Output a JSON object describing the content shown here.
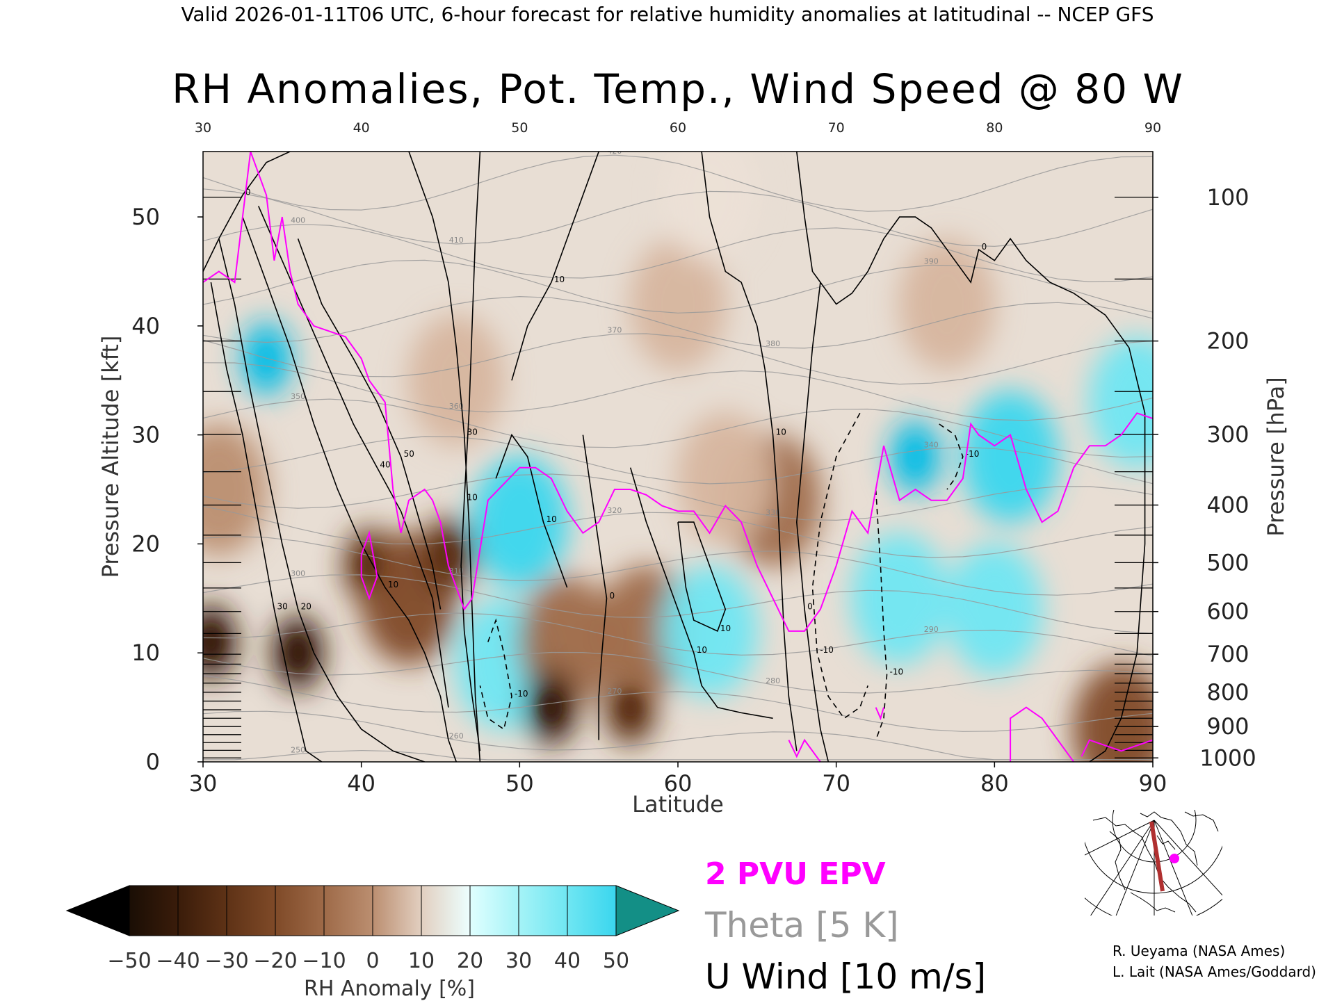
{
  "header": {
    "supertitle": "Valid 2026-01-11T06 UTC, 6-hour forecast for relative humidity anomalies at latitudinal -- NCEP GFS",
    "title": "RH Anomalies, Pot. Temp., Wind Speed @ 80 W"
  },
  "legend": {
    "epv": "2 PVU EPV",
    "theta": "Theta [5 K]",
    "uwind": "U Wind [10 m/s]"
  },
  "credits": [
    "R. Ueyama (NASA Ames)",
    "L. Lait (NASA Ames/Goddard)"
  ],
  "colors": {
    "epv": "#ff00ff",
    "theta": "#999999",
    "wind": "#000000",
    "section_line": "#b03030",
    "rh_scale": [
      "#000000",
      "#3a1c0a",
      "#5e3216",
      "#7f4a28",
      "#9e6a48",
      "#bb8e70",
      "#d6b59e",
      "#ece0d6",
      "#e0ffff",
      "#a5f3f7",
      "#6fe6f2",
      "#3ad6ee",
      "#18bfe4",
      "#0898c0",
      "#138f86"
    ]
  },
  "chart_data": {
    "type": "heatmap",
    "title": "RH Anomalies, Pot. Temp., Wind Speed @ 80 W",
    "xlabel": "Latitude",
    "ylabel": "Pressure Altitude [kft]",
    "y2label": "Pressure [hPa]",
    "xlim": [
      30,
      90
    ],
    "ylim": [
      0,
      56
    ],
    "x_ticks": [
      30,
      40,
      50,
      60,
      70,
      80,
      90
    ],
    "y_ticks": [
      0,
      10,
      20,
      30,
      40,
      50
    ],
    "pressure_ticks": [
      100,
      200,
      300,
      400,
      500,
      600,
      700,
      800,
      900,
      1000
    ],
    "colorbar": {
      "label": "RH Anomaly [%]",
      "ticks": [
        -50,
        -40,
        -30,
        -20,
        -10,
        0,
        10,
        20,
        30,
        40,
        50
      ]
    },
    "rh_anomaly_features": [
      {
        "lat": 34,
        "kft": 37,
        "value": 50
      },
      {
        "lat": 31,
        "kft": 25,
        "value": -20
      },
      {
        "lat": 30.5,
        "kft": 11,
        "value": -60
      },
      {
        "lat": 36,
        "kft": 10,
        "value": -60
      },
      {
        "lat": 40.5,
        "kft": 18,
        "value": -55
      },
      {
        "lat": 43,
        "kft": 15,
        "value": -40
      },
      {
        "lat": 45.5,
        "kft": 19,
        "value": -55
      },
      {
        "lat": 50,
        "kft": 22,
        "value": 40
      },
      {
        "lat": 49,
        "kft": 9,
        "value": 25
      },
      {
        "lat": 53,
        "kft": 11,
        "value": -35
      },
      {
        "lat": 52,
        "kft": 5,
        "value": -60
      },
      {
        "lat": 57,
        "kft": 5,
        "value": -55
      },
      {
        "lat": 58,
        "kft": 12,
        "value": -30
      },
      {
        "lat": 62,
        "kft": 12,
        "value": 25
      },
      {
        "lat": 66,
        "kft": 24,
        "value": -30
      },
      {
        "lat": 63,
        "kft": 26,
        "value": -15
      },
      {
        "lat": 75,
        "kft": 28,
        "value": 50
      },
      {
        "lat": 74,
        "kft": 15,
        "value": 30
      },
      {
        "lat": 81,
        "kft": 28,
        "value": 40
      },
      {
        "lat": 80,
        "kft": 14,
        "value": 25
      },
      {
        "lat": 89,
        "kft": 33,
        "value": 25
      },
      {
        "lat": 88,
        "kft": 3,
        "value": -40
      },
      {
        "lat": 60,
        "kft": 42,
        "value": -15
      },
      {
        "lat": 46,
        "kft": 35,
        "value": -15
      },
      {
        "lat": 77,
        "kft": 42,
        "value": -10
      },
      {
        "lat": 62,
        "kft": 52,
        "value": -5
      }
    ],
    "epv_2pvu_line": [
      [
        30,
        44
      ],
      [
        31,
        45
      ],
      [
        32,
        44
      ],
      [
        33,
        56
      ],
      [
        34,
        52
      ],
      [
        34.5,
        46
      ],
      [
        35,
        50
      ],
      [
        35.5,
        45
      ],
      [
        36,
        42
      ],
      [
        37,
        40
      ],
      [
        38,
        39.5
      ],
      [
        39,
        39
      ],
      [
        40,
        37
      ],
      [
        40.5,
        35
      ],
      [
        41,
        34
      ],
      [
        41.5,
        33
      ],
      [
        42,
        25
      ],
      [
        42.5,
        21
      ],
      [
        43,
        24
      ],
      [
        44,
        25
      ],
      [
        44.5,
        24
      ],
      [
        45,
        22
      ],
      [
        45.5,
        18
      ],
      [
        46,
        16
      ],
      [
        46.5,
        14
      ],
      [
        47,
        15
      ],
      [
        48,
        24
      ],
      [
        49,
        25.5
      ],
      [
        50,
        27
      ],
      [
        51,
        27
      ],
      [
        52,
        26
      ],
      [
        53,
        23
      ],
      [
        54,
        21
      ],
      [
        55,
        22
      ],
      [
        56,
        25
      ],
      [
        57,
        25
      ],
      [
        58,
        24.5
      ],
      [
        59,
        23.5
      ],
      [
        60,
        23
      ],
      [
        61,
        23
      ],
      [
        62,
        21
      ],
      [
        63,
        23.5
      ],
      [
        64,
        22
      ],
      [
        65,
        18
      ],
      [
        66,
        15
      ],
      [
        67,
        12
      ],
      [
        68,
        12
      ],
      [
        69,
        14
      ],
      [
        70,
        18
      ],
      [
        71,
        23
      ],
      [
        72,
        21
      ],
      [
        73,
        29
      ],
      [
        74,
        24
      ],
      [
        75,
        25
      ],
      [
        76,
        24
      ],
      [
        77,
        24
      ],
      [
        78,
        26
      ],
      [
        78.5,
        31
      ],
      [
        79,
        30
      ],
      [
        80,
        29
      ],
      [
        81,
        30
      ],
      [
        82,
        25
      ],
      [
        83,
        22
      ],
      [
        84,
        23
      ],
      [
        85,
        27
      ],
      [
        86,
        29
      ],
      [
        87,
        29
      ],
      [
        88,
        30
      ],
      [
        89,
        32
      ],
      [
        90,
        31.5
      ]
    ],
    "epv_extra_segments": [
      [
        [
          40,
          19
        ],
        [
          40.5,
          21
        ],
        [
          41,
          17
        ],
        [
          40.5,
          15
        ],
        [
          40,
          17
        ],
        [
          40,
          19
        ]
      ],
      [
        [
          72.5,
          5
        ],
        [
          72.8,
          4
        ],
        [
          73,
          5
        ]
      ],
      [
        [
          67,
          2
        ],
        [
          67.5,
          0.5
        ],
        [
          68,
          2
        ],
        [
          69,
          0
        ]
      ],
      [
        [
          81,
          0
        ],
        [
          81,
          4
        ],
        [
          82,
          5
        ],
        [
          83,
          4
        ],
        [
          84,
          2
        ],
        [
          85,
          0
        ]
      ],
      [
        [
          85.5,
          0.5
        ],
        [
          86,
          2
        ],
        [
          88,
          1
        ],
        [
          90,
          2
        ]
      ]
    ],
    "uwind_contours": [
      {
        "label": "30",
        "points": [
          [
            30.5,
            44
          ],
          [
            31.5,
            36
          ],
          [
            32.5,
            30
          ],
          [
            33.5,
            22
          ],
          [
            34.5,
            14
          ],
          [
            35.5,
            7
          ],
          [
            36.5,
            1
          ],
          [
            37.5,
            0
          ]
        ]
      },
      {
        "label": "20",
        "points": [
          [
            31,
            48
          ],
          [
            32,
            42
          ],
          [
            33,
            34
          ],
          [
            34,
            27
          ],
          [
            35,
            20
          ],
          [
            36,
            14
          ],
          [
            37,
            10
          ],
          [
            38.5,
            6
          ],
          [
            40,
            3
          ],
          [
            42,
            1
          ],
          [
            44,
            0
          ]
        ]
      },
      {
        "label": "10",
        "points": [
          [
            32.5,
            50
          ],
          [
            34,
            44
          ],
          [
            35.5,
            38
          ],
          [
            37,
            31
          ],
          [
            38.5,
            25
          ],
          [
            40,
            20
          ],
          [
            41.5,
            16
          ],
          [
            43,
            13
          ],
          [
            44,
            10
          ],
          [
            45,
            6
          ],
          [
            45.5,
            2
          ],
          [
            46,
            0
          ]
        ]
      },
      {
        "label": "40",
        "points": [
          [
            33.5,
            51
          ],
          [
            35,
            46
          ],
          [
            36.5,
            41
          ],
          [
            38,
            36
          ],
          [
            39.5,
            31
          ],
          [
            41,
            27
          ],
          [
            42.5,
            23
          ],
          [
            43.5,
            19
          ],
          [
            44.5,
            15
          ],
          [
            45,
            10
          ],
          [
            45.5,
            5
          ]
        ]
      },
      {
        "label": "50",
        "points": [
          [
            36,
            48
          ],
          [
            37.5,
            42
          ],
          [
            39.5,
            37
          ],
          [
            41,
            33
          ],
          [
            42.5,
            28
          ],
          [
            43.5,
            23
          ],
          [
            44.5,
            18
          ],
          [
            45,
            14
          ]
        ]
      },
      {
        "label": "0",
        "points": [
          [
            30,
            45
          ],
          [
            31,
            48
          ],
          [
            32.5,
            52
          ],
          [
            34,
            55
          ],
          [
            35.5,
            56
          ]
        ]
      },
      {
        "label": "30",
        "points": [
          [
            43,
            56
          ],
          [
            44.5,
            50
          ],
          [
            45.5,
            44
          ],
          [
            46,
            38
          ],
          [
            46.5,
            30
          ],
          [
            46.8,
            22
          ],
          [
            47,
            14
          ],
          [
            47.2,
            6
          ],
          [
            47.5,
            0
          ]
        ]
      },
      {
        "label": "10",
        "points": [
          [
            47.5,
            56
          ],
          [
            47.2,
            48
          ],
          [
            47,
            40
          ],
          [
            46.8,
            32
          ],
          [
            46.5,
            24
          ],
          [
            46.3,
            18
          ],
          [
            46.5,
            12
          ],
          [
            47,
            6
          ],
          [
            47.5,
            1
          ]
        ]
      },
      {
        "label": "10",
        "points": [
          [
            48.5,
            26
          ],
          [
            49.5,
            30
          ],
          [
            50.5,
            28
          ],
          [
            51.5,
            22
          ],
          [
            52.5,
            18
          ],
          [
            53,
            16
          ]
        ]
      },
      {
        "label": "10",
        "points": [
          [
            55,
            56
          ],
          [
            53.5,
            50
          ],
          [
            52,
            44
          ],
          [
            50.5,
            40
          ],
          [
            49.5,
            35
          ]
        ]
      },
      {
        "label": "0",
        "points": [
          [
            54,
            30
          ],
          [
            54.5,
            25
          ],
          [
            55,
            20
          ],
          [
            55.5,
            15
          ],
          [
            55.2,
            10
          ],
          [
            55,
            6
          ],
          [
            55,
            2
          ]
        ]
      },
      {
        "label": "10",
        "points": [
          [
            57,
            27
          ],
          [
            58,
            22
          ],
          [
            59,
            18
          ],
          [
            60,
            14
          ],
          [
            61,
            10
          ],
          [
            61.5,
            7
          ],
          [
            62.5,
            5
          ],
          [
            64,
            4.5
          ],
          [
            66,
            4
          ]
        ]
      },
      {
        "label": "10",
        "points": [
          [
            60,
            22
          ],
          [
            61,
            22
          ],
          [
            62,
            18
          ],
          [
            63,
            14
          ],
          [
            62.5,
            12
          ],
          [
            61,
            13
          ],
          [
            60.5,
            16
          ],
          [
            60,
            22
          ]
        ]
      },
      {
        "label": "10",
        "points": [
          [
            61.5,
            56
          ],
          [
            62,
            50
          ],
          [
            63,
            45
          ],
          [
            64,
            44
          ],
          [
            65,
            40
          ],
          [
            65.5,
            36
          ],
          [
            66,
            30
          ],
          [
            66.3,
            24
          ],
          [
            66.5,
            18
          ],
          [
            66.7,
            12
          ],
          [
            67,
            6
          ],
          [
            67.5,
            1
          ]
        ]
      },
      {
        "label": "0",
        "points": [
          [
            67.5,
            56
          ],
          [
            68,
            50
          ],
          [
            68.5,
            45
          ],
          [
            69,
            44
          ],
          [
            70,
            42
          ],
          [
            71,
            43
          ],
          [
            72,
            45
          ],
          [
            73,
            48
          ],
          [
            74,
            50
          ],
          [
            75,
            50
          ],
          [
            76,
            49
          ],
          [
            77.5,
            46
          ],
          [
            78.5,
            44
          ],
          [
            79,
            47
          ],
          [
            80,
            46
          ],
          [
            81,
            48
          ],
          [
            82,
            46
          ],
          [
            83.5,
            44
          ],
          [
            85,
            43
          ],
          [
            87,
            41
          ],
          [
            88.5,
            38
          ],
          [
            89.5,
            32
          ],
          [
            89.5,
            20
          ],
          [
            89,
            10
          ],
          [
            88,
            4
          ],
          [
            87,
            1
          ],
          [
            86,
            0
          ]
        ]
      },
      {
        "label": "0",
        "points": [
          [
            69,
            44
          ],
          [
            68.5,
            38
          ],
          [
            68,
            30
          ],
          [
            67.5,
            22
          ],
          [
            68,
            14
          ],
          [
            68.5,
            8
          ],
          [
            69,
            3
          ],
          [
            69.5,
            0
          ]
        ]
      }
    ],
    "uwind_dashed_contours": [
      {
        "label": "-10",
        "points": [
          [
            71.5,
            32
          ],
          [
            70,
            28
          ],
          [
            69,
            22
          ],
          [
            68.5,
            16
          ],
          [
            68.8,
            10
          ],
          [
            69.5,
            6
          ],
          [
            70.5,
            4
          ],
          [
            71.5,
            5
          ],
          [
            72,
            7
          ]
        ]
      },
      {
        "label": "-10",
        "points": [
          [
            72.5,
            25
          ],
          [
            72.8,
            18
          ],
          [
            73,
            12
          ],
          [
            73.2,
            8
          ],
          [
            73,
            4
          ],
          [
            72.5,
            2
          ]
        ]
      },
      {
        "label": "-10",
        "points": [
          [
            76.5,
            31
          ],
          [
            77.5,
            30
          ],
          [
            78,
            28
          ],
          [
            77.5,
            26
          ],
          [
            77,
            25
          ]
        ]
      },
      {
        "label": "-10",
        "points": [
          [
            48,
            11
          ],
          [
            48.5,
            13
          ],
          [
            49,
            10
          ],
          [
            49.5,
            6
          ],
          [
            49,
            3
          ],
          [
            48,
            4
          ],
          [
            47.5,
            7
          ]
        ]
      }
    ],
    "theta_levels": [
      250,
      260,
      270,
      280,
      290,
      300,
      310,
      320,
      330,
      340,
      350,
      360,
      370,
      380,
      390,
      400,
      410,
      420
    ]
  }
}
